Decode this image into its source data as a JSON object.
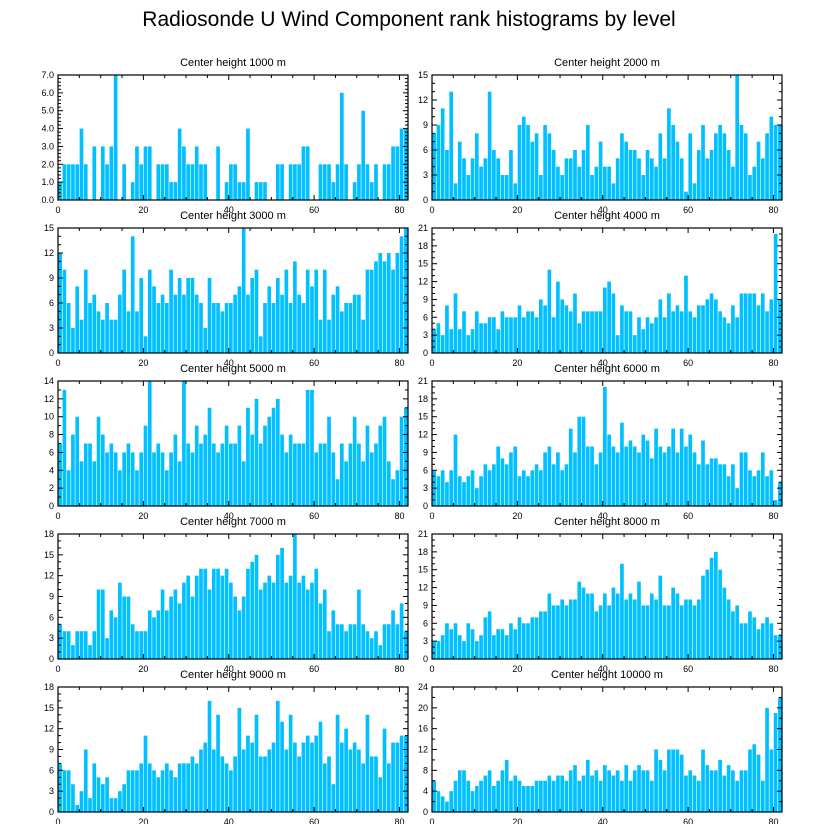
{
  "title": "Radiosonde U Wind Component rank histograms by level",
  "colors": {
    "bar": "#00c0ff",
    "bar_edge": "#ffffff",
    "axis": "#000000"
  },
  "chart_data": [
    {
      "type": "bar",
      "title": "Center height 1000 m",
      "xlim": [
        0,
        82
      ],
      "ylim": [
        0,
        7
      ],
      "xticks": [
        0,
        20,
        40,
        60,
        80
      ],
      "yticks": [
        0,
        1,
        2,
        3,
        4,
        5,
        6,
        7
      ],
      "ytick_labels": [
        "0.0",
        "1.0",
        "2.0",
        "3.0",
        "4.0",
        "5.0",
        "6.0",
        "7.0"
      ],
      "values": [
        1,
        2,
        2,
        2,
        2,
        4,
        2,
        0,
        3,
        0,
        3,
        2,
        3,
        7,
        0,
        2,
        0,
        1,
        3,
        2,
        3,
        3,
        0,
        2,
        2,
        2,
        1,
        1,
        4,
        3,
        2,
        2,
        3,
        2,
        2,
        0,
        0,
        3,
        0,
        1,
        2,
        2,
        1,
        1,
        4,
        0,
        1,
        1,
        1,
        0,
        0,
        2,
        2,
        0,
        2,
        2,
        2,
        3,
        3,
        0,
        0,
        2,
        2,
        2,
        1,
        2,
        6,
        2,
        0,
        1,
        2,
        5,
        2,
        1,
        2,
        0,
        2,
        2,
        3,
        3,
        4,
        4
      ]
    },
    {
      "type": "bar",
      "title": "Center height 2000 m",
      "xlim": [
        0,
        82
      ],
      "ylim": [
        0,
        15
      ],
      "xticks": [
        0,
        20,
        40,
        60,
        80
      ],
      "yticks": [
        0,
        3,
        6,
        9,
        12,
        15
      ],
      "values": [
        8,
        9,
        11,
        6,
        13,
        2,
        7,
        5,
        3,
        5,
        8,
        4,
        5,
        13,
        6,
        5,
        3,
        3,
        6,
        2,
        9,
        10,
        9,
        7,
        8,
        3,
        9,
        8,
        6,
        4,
        3,
        5,
        5,
        6,
        4,
        6,
        9,
        3,
        4,
        7,
        4,
        4,
        2,
        5,
        8,
        7,
        6,
        6,
        5,
        3,
        6,
        5,
        4,
        8,
        5,
        11,
        9,
        7,
        5,
        1,
        8,
        2,
        6,
        9,
        5,
        6,
        8,
        9,
        8,
        6,
        4,
        15,
        9,
        8,
        3,
        4,
        7,
        5,
        8,
        10,
        9,
        9
      ]
    },
    {
      "type": "bar",
      "title": "Center height 3000 m",
      "xlim": [
        0,
        82
      ],
      "ylim": [
        0,
        15
      ],
      "xticks": [
        0,
        20,
        40,
        60,
        80
      ],
      "yticks": [
        0,
        3,
        6,
        9,
        12,
        15
      ],
      "values": [
        12,
        10,
        6,
        3,
        8,
        4,
        10,
        6,
        7,
        5,
        4,
        6,
        4,
        4,
        7,
        10,
        5,
        14,
        5,
        9,
        2,
        10,
        8,
        6,
        7,
        6,
        10,
        7,
        9,
        7,
        9,
        9,
        7,
        6,
        3,
        9,
        6,
        6,
        5,
        6,
        6,
        7,
        8,
        15,
        7,
        9,
        10,
        2,
        6,
        8,
        6,
        9,
        7,
        10,
        6,
        11,
        7,
        6,
        10,
        8,
        10,
        4,
        10,
        4,
        7,
        8,
        5,
        6,
        6,
        7,
        7,
        4,
        10,
        10,
        11,
        12,
        11,
        12,
        10,
        12,
        14,
        15
      ]
    },
    {
      "type": "bar",
      "title": "Center height 4000 m",
      "xlim": [
        0,
        82
      ],
      "ylim": [
        0,
        21
      ],
      "xticks": [
        0,
        20,
        40,
        60,
        80
      ],
      "yticks": [
        0,
        3,
        6,
        9,
        12,
        15,
        18,
        21
      ],
      "values": [
        4,
        5,
        3,
        8,
        4,
        10,
        4,
        7,
        3,
        4,
        7,
        5,
        5,
        6,
        6,
        4,
        7,
        6,
        6,
        6,
        8,
        6,
        7,
        7,
        6,
        9,
        8,
        14,
        6,
        12,
        9,
        8,
        7,
        10,
        5,
        7,
        7,
        7,
        7,
        7,
        11,
        12,
        10,
        3,
        8,
        7,
        7,
        3,
        6,
        4,
        6,
        5,
        6,
        9,
        6,
        10,
        7,
        8,
        7,
        13,
        7,
        6,
        8,
        8,
        9,
        10,
        9,
        7,
        6,
        5,
        8,
        6,
        10,
        10,
        10,
        10,
        8,
        10,
        7,
        9,
        20,
        9
      ]
    },
    {
      "type": "bar",
      "title": "Center height 5000 m",
      "xlim": [
        0,
        82
      ],
      "ylim": [
        0,
        14
      ],
      "xticks": [
        0,
        20,
        40,
        60,
        80
      ],
      "yticks": [
        0,
        2,
        4,
        6,
        8,
        10,
        12,
        14
      ],
      "ytick_labels": [
        "0",
        "2",
        "4",
        "6",
        "8",
        "10",
        "12",
        "14"
      ],
      "values": [
        7,
        13,
        4,
        8,
        10,
        5,
        7,
        7,
        5,
        10,
        8,
        6,
        7,
        6,
        4,
        6,
        7,
        6,
        4,
        6,
        9,
        14,
        6,
        7,
        6,
        4,
        6,
        8,
        5,
        14,
        7,
        6,
        9,
        7,
        8,
        11,
        7,
        6,
        7,
        9,
        7,
        7,
        9,
        5,
        11,
        8,
        12,
        7,
        9,
        10,
        11,
        12,
        8,
        6,
        8,
        7,
        7,
        7,
        13,
        13,
        6,
        7,
        7,
        10,
        6,
        3,
        7,
        5,
        7,
        10,
        7,
        5,
        9,
        6,
        7,
        9,
        10,
        5,
        3,
        4,
        10,
        11
      ]
    },
    {
      "type": "bar",
      "title": "Center height 6000 m",
      "xlim": [
        0,
        82
      ],
      "ylim": [
        0,
        21
      ],
      "xticks": [
        0,
        20,
        40,
        60,
        80
      ],
      "yticks": [
        0,
        3,
        6,
        9,
        12,
        15,
        18,
        21
      ],
      "values": [
        6,
        5,
        6,
        4,
        6,
        12,
        5,
        4,
        5,
        6,
        3,
        5,
        7,
        6,
        7,
        10,
        8,
        7,
        9,
        10,
        5,
        6,
        5,
        6,
        7,
        6,
        9,
        10,
        7,
        9,
        6,
        7,
        13,
        9,
        15,
        15,
        10,
        10,
        7,
        9,
        20,
        12,
        10,
        9,
        14,
        10,
        11,
        10,
        9,
        12,
        11,
        8,
        13,
        10,
        9,
        10,
        13,
        9,
        13,
        10,
        12,
        9,
        7,
        11,
        7,
        8,
        8,
        7,
        7,
        5,
        7,
        3,
        9,
        9,
        6,
        5,
        6,
        9,
        5,
        6,
        1,
        4
      ]
    },
    {
      "type": "bar",
      "title": "Center height 7000 m",
      "xlim": [
        0,
        82
      ],
      "ylim": [
        0,
        18
      ],
      "xticks": [
        0,
        20,
        40,
        60,
        80
      ],
      "yticks": [
        0,
        3,
        6,
        9,
        12,
        15,
        18
      ],
      "values": [
        5,
        4,
        4,
        2,
        4,
        4,
        4,
        2,
        4,
        10,
        10,
        3,
        7,
        6,
        11,
        9,
        9,
        5,
        4,
        4,
        4,
        7,
        6,
        7,
        10,
        7,
        9,
        10,
        8,
        11,
        12,
        9,
        12,
        13,
        13,
        10,
        13,
        13,
        12,
        13,
        11,
        9,
        7,
        9,
        13,
        14,
        15,
        10,
        11,
        12,
        11,
        15,
        16,
        11,
        12,
        18,
        11,
        12,
        10,
        11,
        13,
        8,
        10,
        4,
        7,
        5,
        5,
        4,
        5,
        5,
        10,
        5,
        4,
        3,
        4,
        2,
        5,
        5,
        7,
        5,
        8,
        4
      ]
    },
    {
      "type": "bar",
      "title": "Center height 8000 m",
      "xlim": [
        0,
        82
      ],
      "ylim": [
        0,
        21
      ],
      "xticks": [
        0,
        20,
        40,
        60,
        80
      ],
      "yticks": [
        0,
        3,
        6,
        9,
        12,
        15,
        18,
        21
      ],
      "values": [
        3,
        3,
        4,
        6,
        5,
        6,
        4,
        3,
        6,
        5,
        3,
        4,
        7,
        8,
        4,
        5,
        5,
        4,
        6,
        5,
        7,
        6,
        6,
        7,
        7,
        8,
        8,
        11,
        9,
        9,
        10,
        9,
        10,
        10,
        13,
        12,
        11,
        11,
        8,
        9,
        11,
        9,
        12,
        11,
        16,
        10,
        11,
        10,
        13,
        9,
        9,
        11,
        10,
        14,
        9,
        9,
        12,
        11,
        9,
        10,
        10,
        9,
        10,
        14,
        15,
        17,
        18,
        15,
        12,
        10,
        8,
        9,
        6,
        6,
        8,
        7,
        5,
        6,
        7,
        6,
        4,
        4
      ]
    },
    {
      "type": "bar",
      "title": "Center height 9000 m",
      "xlim": [
        0,
        82
      ],
      "ylim": [
        0,
        18
      ],
      "xticks": [
        0,
        20,
        40,
        60,
        80
      ],
      "yticks": [
        0,
        3,
        6,
        9,
        12,
        15,
        18
      ],
      "values": [
        7,
        6,
        6,
        4,
        1,
        3,
        9,
        2,
        7,
        5,
        4,
        5,
        2,
        2,
        3,
        4,
        6,
        6,
        6,
        7,
        11,
        7,
        6,
        5,
        6,
        7,
        6,
        5,
        7,
        7,
        7,
        8,
        7,
        9,
        10,
        16,
        9,
        14,
        8,
        7,
        6,
        8,
        15,
        9,
        11,
        10,
        14,
        8,
        8,
        9,
        10,
        16,
        13,
        9,
        14,
        10,
        8,
        10,
        11,
        10,
        11,
        13,
        7,
        8,
        4,
        14,
        10,
        12,
        9,
        10,
        9,
        7,
        14,
        8,
        8,
        5,
        12,
        7,
        10,
        10,
        11,
        11
      ]
    },
    {
      "type": "bar",
      "title": "Center height 10000 m",
      "xlim": [
        0,
        82
      ],
      "ylim": [
        0,
        24
      ],
      "xticks": [
        0,
        20,
        40,
        60,
        80
      ],
      "yticks": [
        0,
        4,
        8,
        12,
        16,
        20,
        24
      ],
      "values": [
        6,
        4,
        3,
        2,
        4,
        6,
        8,
        8,
        6,
        4,
        5,
        6,
        7,
        8,
        5,
        6,
        8,
        10,
        6,
        7,
        6,
        5,
        5,
        5,
        6,
        6,
        6,
        7,
        6,
        7,
        7,
        6,
        8,
        9,
        6,
        7,
        10,
        7,
        8,
        6,
        9,
        8,
        7,
        8,
        6,
        9,
        6,
        8,
        9,
        8,
        8,
        6,
        12,
        10,
        8,
        12,
        12,
        12,
        11,
        7,
        8,
        7,
        6,
        12,
        9,
        8,
        8,
        10,
        7,
        9,
        8,
        6,
        8,
        8,
        12,
        13,
        11,
        6,
        20,
        12,
        19,
        22
      ]
    }
  ]
}
